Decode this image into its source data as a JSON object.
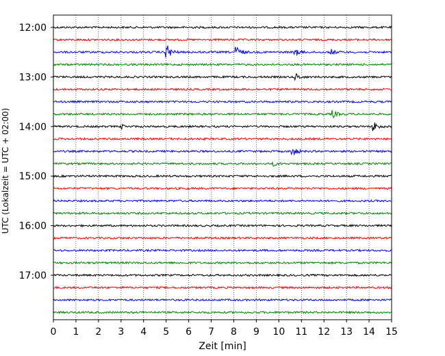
{
  "chart_data": {
    "type": "line",
    "title": "",
    "xlabel": "Zeit  [min]",
    "ylabel": "UTC (Lokalzeit = UTC + 02:00)",
    "xlim": [
      0,
      15
    ],
    "x_ticks": [
      "0",
      "1",
      "2",
      "3",
      "4",
      "5",
      "6",
      "7",
      "8",
      "9",
      "10",
      "11",
      "12",
      "13",
      "14",
      "15"
    ],
    "y_tick_labels": [
      "12:00",
      "13:00",
      "14:00",
      "15:00",
      "16:00",
      "17:00"
    ],
    "grid": "vertical dotted",
    "trace_start": "12:00",
    "trace_interval_minutes": 15,
    "trace_count": 24,
    "trace_colors": [
      "#000000",
      "#ff0000",
      "#0000ff",
      "#008000"
    ],
    "events": [
      {
        "trace": "12:30",
        "minute": 5.0,
        "amplitude": 1.0
      },
      {
        "trace": "12:30",
        "minute": 8.1,
        "amplitude": 0.75
      },
      {
        "trace": "12:30",
        "minute": 10.7,
        "amplitude": 0.45
      },
      {
        "trace": "12:30",
        "minute": 12.3,
        "amplitude": 0.3
      },
      {
        "trace": "13:00",
        "minute": 10.7,
        "amplitude": 0.45
      },
      {
        "trace": "13:45",
        "minute": 12.4,
        "amplitude": 0.35
      },
      {
        "trace": "14:00",
        "minute": 14.2,
        "amplitude": 0.55
      },
      {
        "trace": "14:00",
        "minute": 3.0,
        "amplitude": 0.2
      },
      {
        "trace": "14:30",
        "minute": 10.6,
        "amplitude": 0.55
      },
      {
        "trace": "14:45",
        "minute": 9.7,
        "amplitude": 0.25
      }
    ]
  }
}
